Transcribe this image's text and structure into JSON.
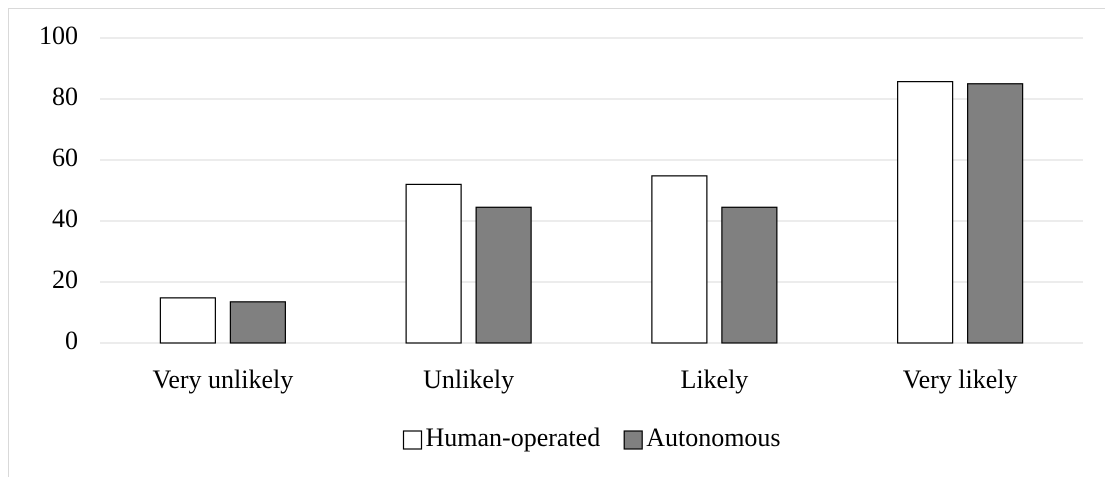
{
  "chart_data": {
    "type": "bar",
    "categories": [
      "Very unlikely",
      "Unlikely",
      "Likely",
      "Very likely"
    ],
    "series": [
      {
        "name": "Human-operated",
        "color": "#ffffff",
        "values": [
          14.8,
          52,
          54.8,
          85.7
        ]
      },
      {
        "name": "Autonomous",
        "color": "#808080",
        "values": [
          13.5,
          44.5,
          44.5,
          85
        ]
      }
    ],
    "ylim": [
      0,
      100
    ],
    "yticks": [
      0,
      20,
      40,
      60,
      80,
      100
    ],
    "grid": true,
    "legend": "bottom"
  }
}
